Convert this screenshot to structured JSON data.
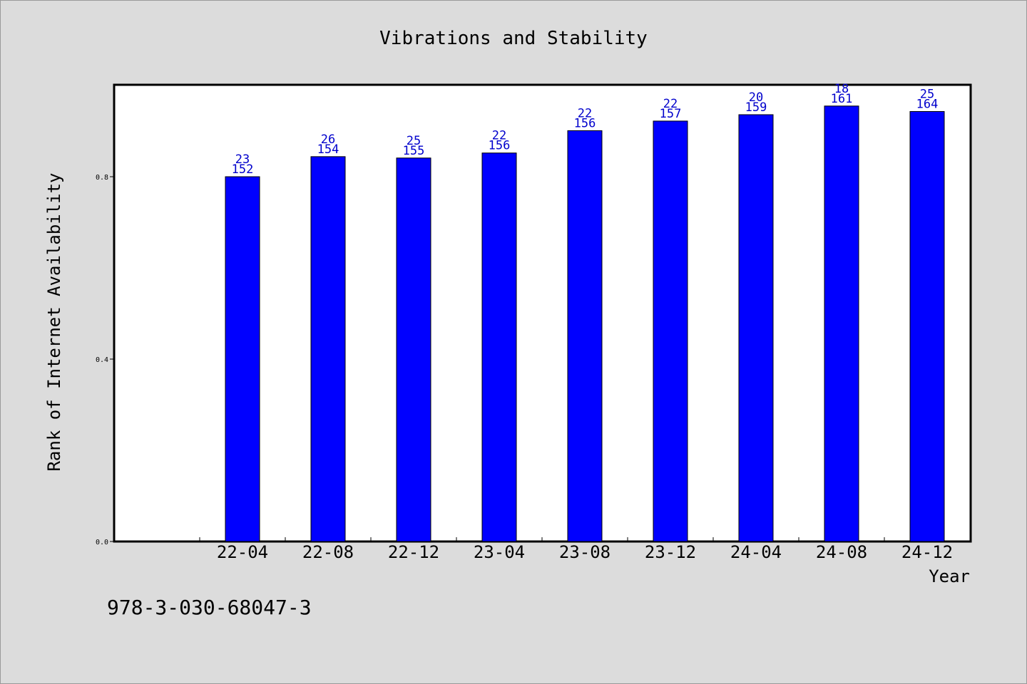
{
  "chart_data": {
    "type": "bar",
    "title": "Vibrations and Stability",
    "xlabel": "Year",
    "ylabel": "Rank of Internet Availability",
    "categories": [
      "22-04",
      "22-08",
      "22-12",
      "23-04",
      "23-08",
      "23-12",
      "24-04",
      "24-08",
      "24-12"
    ],
    "values": [
      0.8,
      0.844,
      0.841,
      0.852,
      0.901,
      0.922,
      0.936,
      0.955,
      0.943
    ],
    "labels_top": [
      "23",
      "26",
      "25",
      "22",
      "22",
      "22",
      "20",
      "18",
      "25"
    ],
    "labels_bottom": [
      "152",
      "154",
      "155",
      "156",
      "156",
      "157",
      "159",
      "161",
      "164"
    ],
    "yticks": [
      "0.0",
      "0.4",
      "0.8"
    ],
    "ylim": [
      0,
      1.0
    ],
    "grid": false,
    "legend": "none",
    "bar_color": "#0000ff",
    "label_color": "#0000cc"
  },
  "footnote": "978-3-030-68047-3"
}
